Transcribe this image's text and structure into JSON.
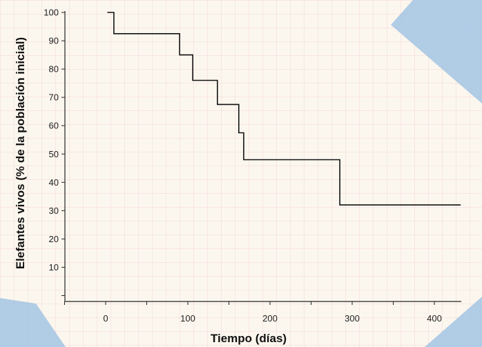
{
  "chart_data": {
    "type": "line",
    "subtype": "step",
    "xlabel": "Tiempo (días)",
    "ylabel": "Elefantes vivos (% de la población inicial)",
    "xlim": [
      -50,
      440
    ],
    "ylim": [
      0,
      102
    ],
    "x_ticks": [
      0,
      100,
      200,
      300,
      400
    ],
    "y_ticks": [
      10,
      20,
      30,
      40,
      50,
      60,
      70,
      80,
      90,
      100
    ],
    "series": [
      {
        "points": [
          {
            "x": 2,
            "y": 100
          },
          {
            "x": 10,
            "y": 100
          },
          {
            "x": 10,
            "y": 92.5
          },
          {
            "x": 90,
            "y": 92.5
          },
          {
            "x": 90,
            "y": 85
          },
          {
            "x": 106,
            "y": 85
          },
          {
            "x": 106,
            "y": 76
          },
          {
            "x": 136,
            "y": 76
          },
          {
            "x": 136,
            "y": 67.5
          },
          {
            "x": 162,
            "y": 67.5
          },
          {
            "x": 162,
            "y": 57.5
          },
          {
            "x": 168,
            "y": 57.5
          },
          {
            "x": 168,
            "y": 48
          },
          {
            "x": 285,
            "y": 48
          },
          {
            "x": 285,
            "y": 32
          },
          {
            "x": 432,
            "y": 32
          }
        ]
      }
    ],
    "grid": false,
    "legend": "none"
  },
  "theme": {
    "paper": "#fbf7ee",
    "grid_line": "#ecaabe",
    "tape": "#a9c6e3",
    "ink": "#111111"
  }
}
